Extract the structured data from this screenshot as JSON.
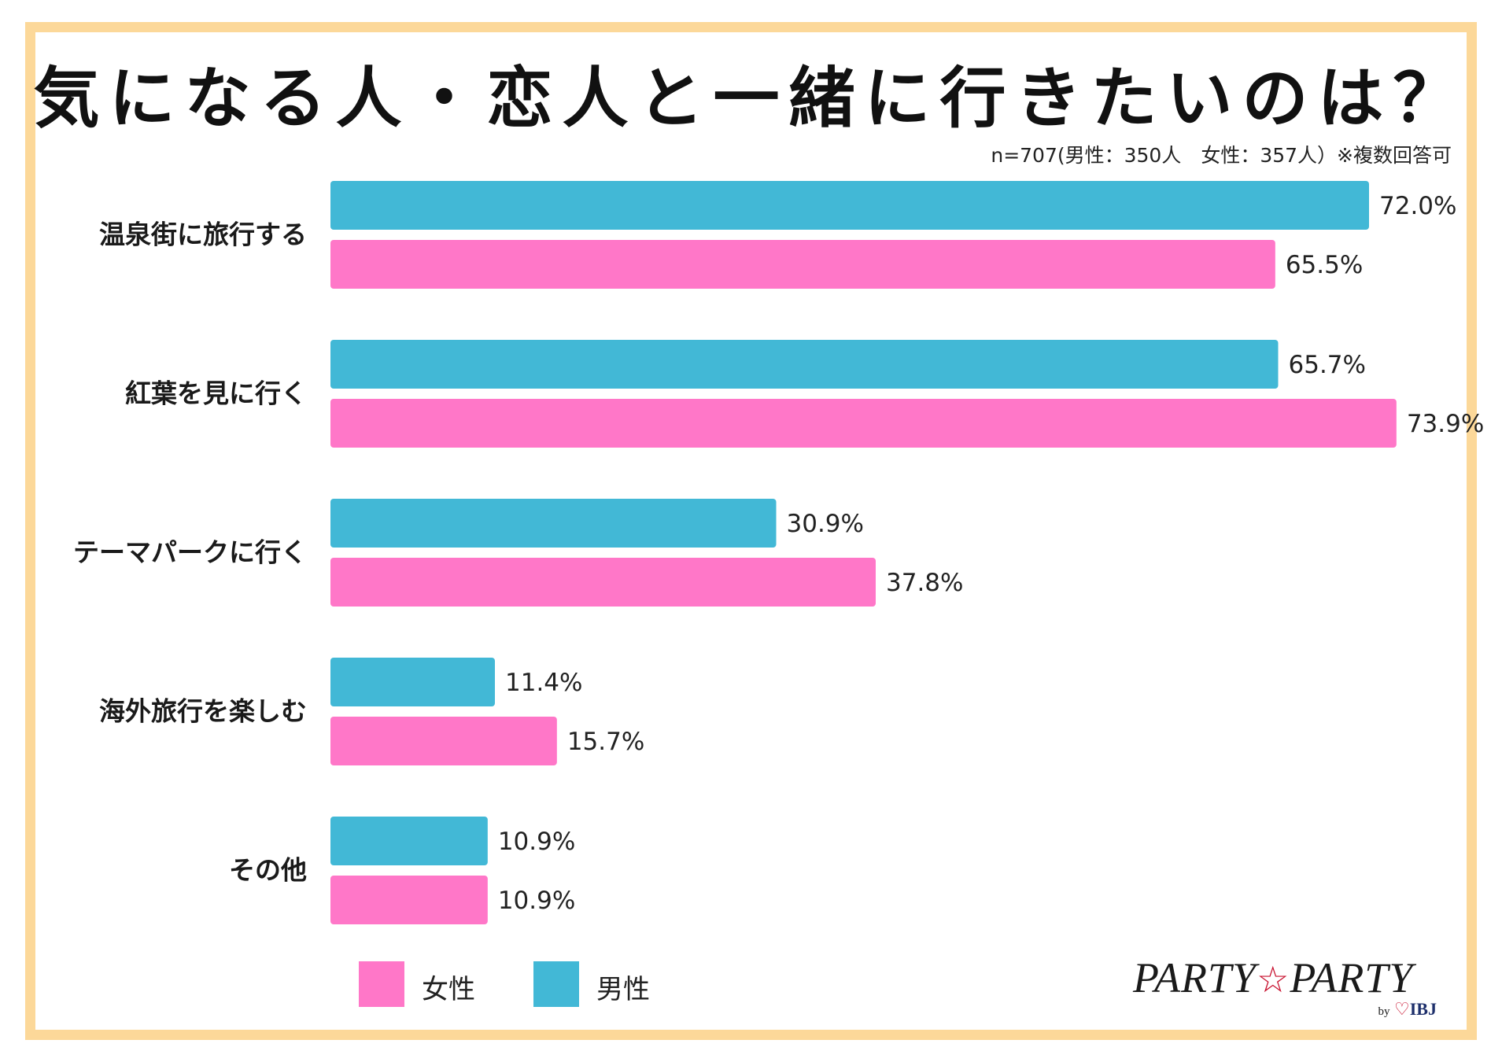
{
  "title": "気になる人・恋人と一緒に行きたいのは？",
  "subtitle": "n=707(男性：350人　女性：357人）※複数回答可",
  "colors": {
    "male": "#42b8d6",
    "female": "#ff77c8",
    "frame": "#fcd899"
  },
  "chart_data": {
    "type": "bar",
    "orientation": "horizontal",
    "categories": [
      "温泉街に旅行する",
      "紅葉を見に行く",
      "テーマパークに行く",
      "海外旅行を楽しむ",
      "その他"
    ],
    "series": [
      {
        "name": "男性",
        "values": [
          72.0,
          65.7,
          30.9,
          11.4,
          10.9
        ]
      },
      {
        "name": "女性",
        "values": [
          65.5,
          73.9,
          37.8,
          15.7,
          10.9
        ]
      }
    ],
    "unit": "%",
    "xlim": [
      0,
      100
    ]
  },
  "legend": [
    {
      "label": "女性",
      "color_key": "female"
    },
    {
      "label": "男性",
      "color_key": "male"
    }
  ],
  "logo": {
    "main_left": "PARTY",
    "star": "☆",
    "main_right": "PARTY",
    "by": "by",
    "heart": "♡",
    "brand": "IBJ"
  }
}
